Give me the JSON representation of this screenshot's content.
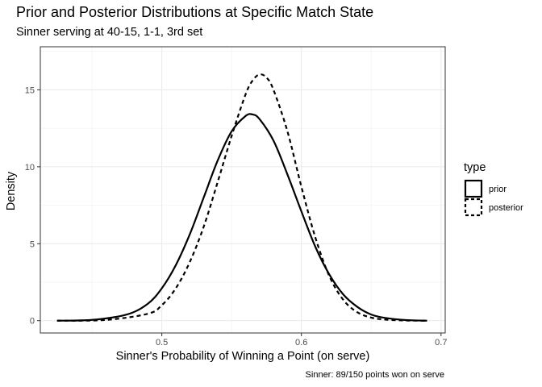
{
  "chart_data": {
    "type": "line",
    "title": "Prior and Posterior Distributions at Specific Match State",
    "subtitle": "Sinner serving at 40-15, 1-1, 3rd set",
    "xlabel": "Sinner's Probability of Winning a Point (on serve)",
    "ylabel": "Density",
    "caption": "Sinner: 89/150 points won on serve",
    "xlim": [
      0.413,
      0.703
    ],
    "ylim": [
      -0.8,
      17.8
    ],
    "xticks": [
      0.5,
      0.6,
      0.7
    ],
    "xtick_labels": [
      "0.5",
      "0.6",
      "0.7"
    ],
    "yticks": [
      0,
      5,
      10,
      15
    ],
    "ytick_labels": [
      "0",
      "5",
      "10",
      "15"
    ],
    "grid": true,
    "legend": {
      "title": "type",
      "placement": "right"
    },
    "series": [
      {
        "name": "prior",
        "line_style": "solid",
        "x": [
          0.425,
          0.45,
          0.475,
          0.49,
          0.5,
          0.51,
          0.52,
          0.53,
          0.54,
          0.55,
          0.56,
          0.565,
          0.57,
          0.58,
          0.59,
          0.6,
          0.61,
          0.62,
          0.63,
          0.64,
          0.65,
          0.66,
          0.675,
          0.69
        ],
        "y": [
          0.0,
          0.05,
          0.4,
          1.1,
          2.1,
          3.6,
          5.6,
          8.0,
          10.4,
          12.3,
          13.3,
          13.4,
          13.1,
          11.7,
          9.5,
          7.1,
          4.8,
          3.0,
          1.7,
          0.9,
          0.4,
          0.18,
          0.04,
          0.0
        ]
      },
      {
        "name": "posterior",
        "line_style": "dashed",
        "x": [
          0.425,
          0.46,
          0.49,
          0.5,
          0.51,
          0.52,
          0.53,
          0.54,
          0.55,
          0.56,
          0.565,
          0.57,
          0.575,
          0.58,
          0.59,
          0.6,
          0.61,
          0.62,
          0.63,
          0.64,
          0.65,
          0.66,
          0.675,
          0.69
        ],
        "y": [
          0.0,
          0.05,
          0.45,
          1.0,
          2.1,
          3.8,
          6.1,
          9.0,
          12.0,
          14.7,
          15.6,
          16.0,
          15.8,
          15.0,
          12.3,
          8.7,
          5.4,
          2.9,
          1.35,
          0.55,
          0.2,
          0.07,
          0.01,
          0.0
        ]
      }
    ]
  }
}
